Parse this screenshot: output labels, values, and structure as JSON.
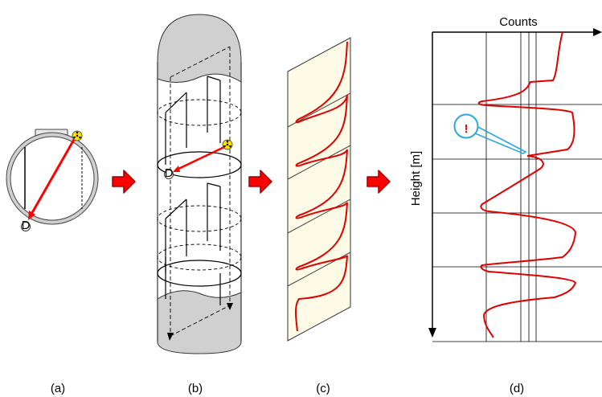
{
  "panels": {
    "a": {
      "caption": "(a)",
      "detector_label": "D",
      "source_icon": "radiation-trefoil-icon"
    },
    "b": {
      "caption": "(b)",
      "detector_label": "D",
      "source_icon": "radiation-trefoil-icon"
    },
    "c": {
      "caption": "(c)"
    },
    "d": {
      "caption": "(d)",
      "x_axis_label": "Counts",
      "y_axis_label": "Height [m]",
      "callout_text": "!"
    }
  },
  "colors": {
    "scan_line": "#ff0000",
    "arrow_fill": "#ff0000",
    "arrow_stroke": "#a00000",
    "vessel_cap": "#d0d0d0",
    "strip_fill": "#fdfbe6",
    "callout": "#2aa8e0",
    "alert": "#ff0000"
  }
}
